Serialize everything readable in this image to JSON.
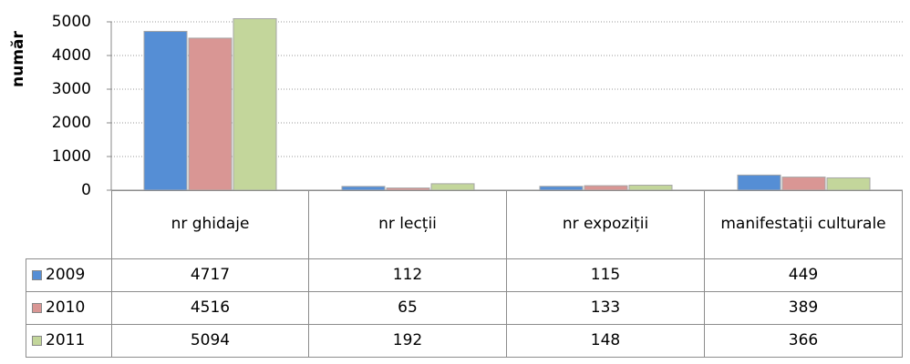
{
  "chart_data": {
    "type": "bar",
    "ylabel": "număr",
    "categories": [
      "nr ghidaje",
      "nr lecții",
      "nr expoziții",
      "manifestații culturale"
    ],
    "series": [
      {
        "name": "2009",
        "color": "#558ed5",
        "values": [
          4717,
          112,
          115,
          449
        ]
      },
      {
        "name": "2010",
        "color": "#d99694",
        "values": [
          4516,
          65,
          133,
          389
        ]
      },
      {
        "name": "2011",
        "color": "#c3d69b",
        "values": [
          5094,
          192,
          148,
          366
        ]
      }
    ],
    "ylim": [
      0,
      5000
    ],
    "yticks": [
      0,
      1000,
      2000,
      3000,
      4000,
      5000
    ],
    "grid": true,
    "data_table": true
  }
}
